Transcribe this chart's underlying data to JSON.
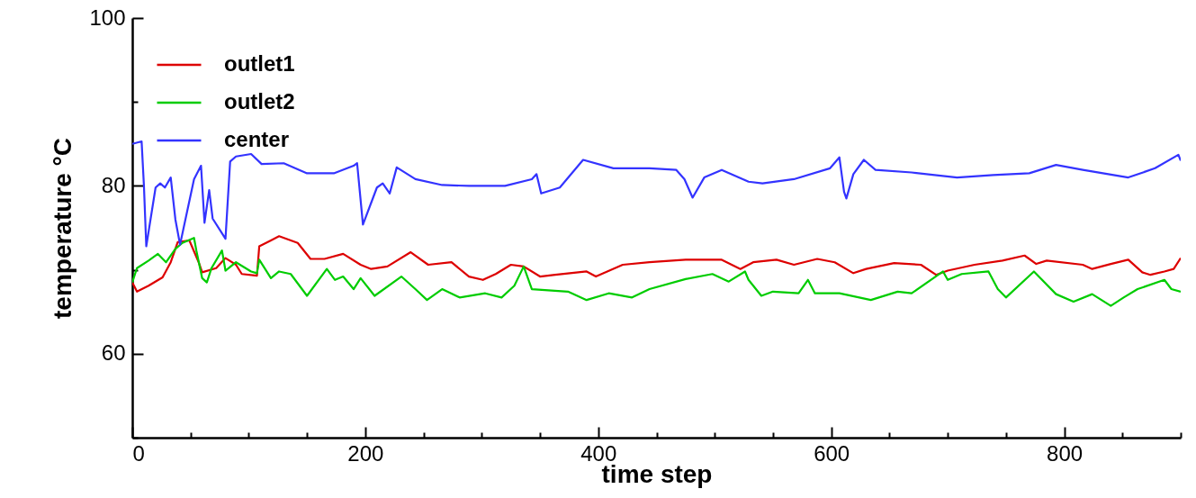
{
  "chart_data": {
    "type": "line",
    "xlabel": "time step",
    "ylabel": "temperature °C",
    "xlim": [
      0,
      900
    ],
    "ylim": [
      50,
      100
    ],
    "xticks": [
      0,
      {
        "value": 50,
        "label": null
      },
      {
        "value": 100,
        "label": null
      },
      {
        "value": 150,
        "label": null
      },
      200,
      {
        "value": 250,
        "label": null
      },
      {
        "value": 300,
        "label": null
      },
      {
        "value": 350,
        "label": null
      },
      400,
      {
        "value": 450,
        "label": null
      },
      {
        "value": 500,
        "label": null
      },
      {
        "value": 550,
        "label": null
      },
      600,
      {
        "value": 650,
        "label": null
      },
      {
        "value": 700,
        "label": null
      },
      {
        "value": 750,
        "label": null
      },
      800,
      {
        "value": 850,
        "label": null
      },
      {
        "value": 900,
        "label": null
      }
    ],
    "yticks": [
      {
        "value": 50,
        "label": null
      },
      60,
      {
        "value": 70,
        "label": null
      },
      80,
      {
        "value": 90,
        "label": null
      },
      100
    ],
    "grid": false,
    "legend": "top left",
    "marker": "none",
    "line_style": "solid",
    "series": [
      {
        "name": "outlet1",
        "color": "#dd0000",
        "x": [
          0,
          4,
          14,
          26,
          33,
          39,
          49,
          57,
          60,
          72,
          80,
          89,
          94,
          107,
          109,
          119,
          126,
          142,
          153,
          165,
          181,
          196,
          205,
          219,
          239,
          254,
          274,
          289,
          301,
          312,
          325,
          336,
          350,
          363,
          390,
          398,
          421,
          444,
          475,
          506,
          522,
          533,
          553,
          568,
          588,
          603,
          619,
          630,
          654,
          677,
          690,
          700,
          723,
          747,
          766,
          776,
          785,
          816,
          824,
          840,
          855,
          867,
          874,
          886,
          894,
          900
        ],
        "values": [
          68.5,
          67.4,
          68.1,
          69.1,
          70.9,
          73.3,
          73.5,
          70.9,
          69.7,
          70.2,
          71.4,
          70.6,
          69.5,
          69.3,
          72.8,
          73.5,
          74.0,
          73.2,
          71.3,
          71.3,
          71.9,
          70.6,
          70.1,
          70.4,
          72.1,
          70.6,
          70.9,
          69.2,
          68.8,
          69.5,
          70.6,
          70.4,
          69.2,
          69.4,
          69.8,
          69.2,
          70.6,
          70.9,
          71.2,
          71.2,
          70.1,
          70.9,
          71.2,
          70.6,
          71.3,
          70.9,
          69.6,
          70.1,
          70.8,
          70.6,
          69.4,
          69.9,
          70.6,
          71.1,
          71.7,
          70.7,
          71.1,
          70.6,
          70.1,
          70.7,
          71.2,
          69.7,
          69.4,
          69.8,
          70.1,
          71.4
        ]
      },
      {
        "name": "outlet2",
        "color": "#00cc00",
        "x": [
          0,
          4,
          14,
          22,
          29,
          37,
          43,
          53,
          55,
          60,
          64,
          68,
          77,
          80,
          89,
          102,
          107,
          109,
          119,
          126,
          136,
          150,
          167,
          174,
          181,
          190,
          196,
          208,
          231,
          243,
          253,
          266,
          281,
          303,
          317,
          328,
          336,
          343,
          374,
          390,
          409,
          429,
          444,
          475,
          498,
          512,
          526,
          529,
          540,
          550,
          572,
          580,
          586,
          607,
          634,
          657,
          669,
          696,
          700,
          712,
          735,
          743,
          750,
          774,
          793,
          808,
          824,
          840,
          851,
          863,
          886,
          892,
          900
        ],
        "values": [
          68.5,
          70.2,
          71.1,
          71.9,
          70.9,
          72.5,
          73.2,
          73.8,
          72.3,
          69.0,
          68.5,
          70.2,
          72.3,
          69.9,
          70.9,
          69.8,
          69.6,
          71.2,
          69.0,
          69.8,
          69.5,
          66.9,
          70.1,
          68.8,
          69.2,
          67.7,
          69.0,
          66.9,
          69.2,
          67.7,
          66.4,
          67.7,
          66.7,
          67.2,
          66.7,
          68.1,
          70.4,
          67.7,
          67.4,
          66.4,
          67.2,
          66.7,
          67.7,
          68.9,
          69.5,
          68.6,
          69.8,
          68.8,
          66.9,
          67.4,
          67.2,
          68.8,
          67.2,
          67.2,
          66.4,
          67.4,
          67.2,
          69.8,
          68.8,
          69.5,
          69.8,
          67.7,
          66.7,
          69.8,
          67.1,
          66.2,
          67.1,
          65.7,
          66.7,
          67.7,
          68.8,
          67.7,
          67.4
        ]
      },
      {
        "name": "center",
        "color": "#3333ff",
        "x": [
          0,
          8,
          10,
          12,
          20,
          24,
          28,
          33,
          37,
          41,
          53,
          59,
          62,
          66,
          69,
          80,
          84,
          89,
          102,
          111,
          130,
          150,
          173,
          190,
          193,
          198,
          210,
          215,
          221,
          227,
          243,
          266,
          289,
          320,
          343,
          347,
          351,
          367,
          387,
          413,
          444,
          467,
          474,
          481,
          491,
          506,
          529,
          541,
          568,
          599,
          607,
          611,
          613,
          619,
          628,
          638,
          669,
          708,
          739,
          770,
          793,
          816,
          855,
          878,
          898,
          900
        ],
        "values": [
          85.0,
          85.3,
          80.0,
          72.8,
          79.8,
          80.3,
          79.8,
          81.0,
          76.0,
          73.0,
          80.8,
          82.4,
          75.6,
          79.5,
          76.1,
          73.7,
          82.9,
          83.5,
          83.8,
          82.6,
          82.7,
          81.5,
          81.5,
          82.4,
          82.7,
          75.4,
          79.8,
          80.3,
          79.1,
          82.2,
          80.8,
          80.1,
          80.0,
          80.0,
          80.8,
          81.4,
          79.1,
          79.8,
          83.1,
          82.1,
          82.1,
          81.9,
          80.8,
          78.6,
          81.0,
          81.9,
          80.5,
          80.3,
          80.8,
          82.1,
          83.4,
          79.3,
          78.5,
          81.4,
          83.1,
          81.9,
          81.6,
          81.0,
          81.3,
          81.5,
          82.5,
          81.9,
          81.0,
          82.1,
          83.7,
          83.0
        ]
      }
    ]
  }
}
